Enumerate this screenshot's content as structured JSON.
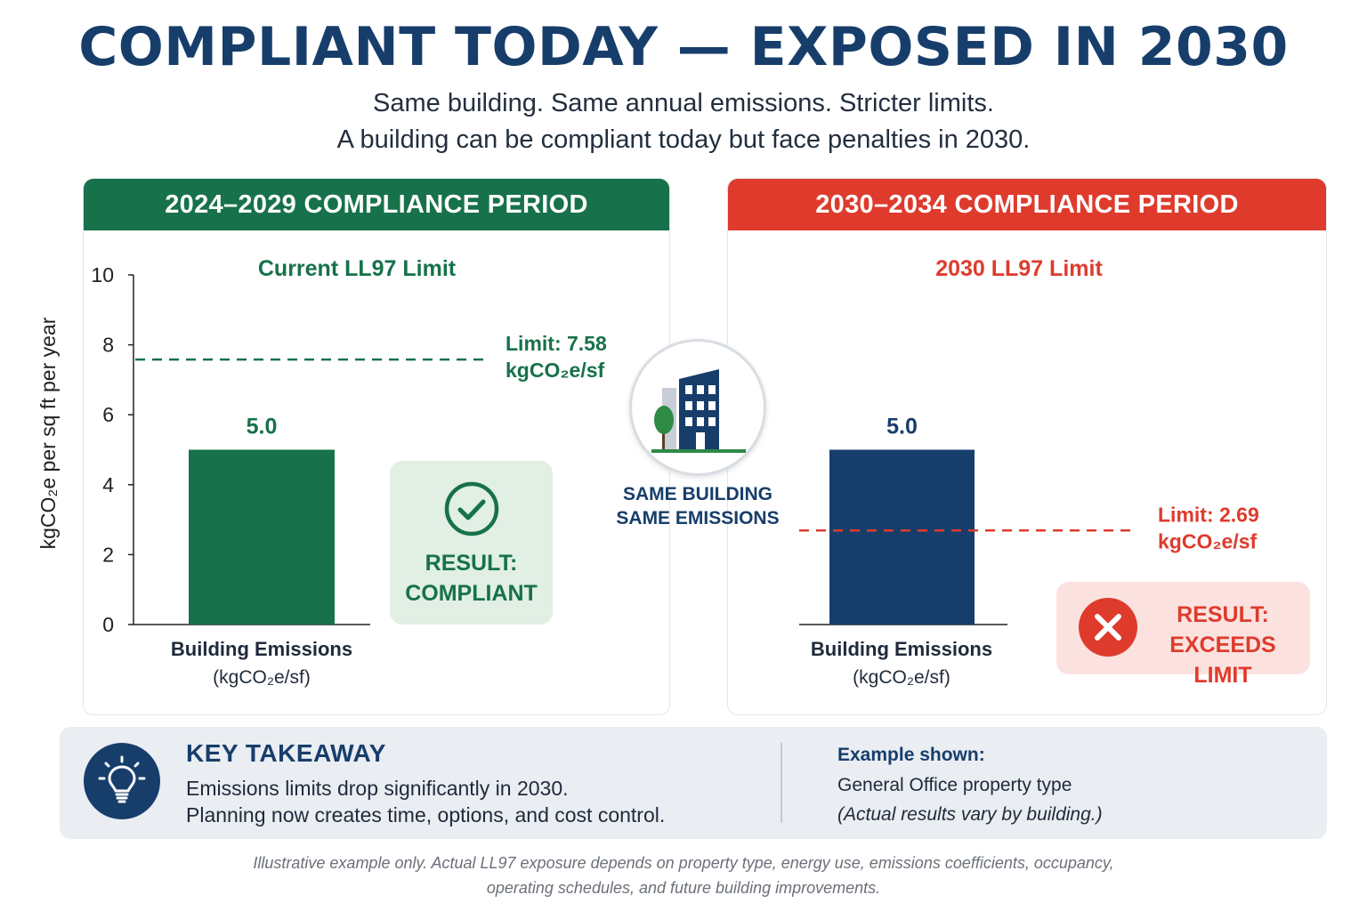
{
  "title": "COMPLIANT TODAY — EXPOSED IN 2030",
  "subtitle_line1": "Same building. Same annual emissions. Stricter limits.",
  "subtitle_line2": "A building can be compliant today but face penalties in 2030.",
  "colors": {
    "green": "#17714a",
    "red": "#de3b2d",
    "navy": "#173e6b",
    "bar_navy": "#173e6b"
  },
  "center": {
    "line1": "SAME BUILDING",
    "line2": "SAME EMISSIONS",
    "icon": "building-icon"
  },
  "results": {
    "left": {
      "line1": "RESULT:",
      "line2": "COMPLIANT",
      "icon": "check-circle-icon"
    },
    "right": {
      "line1": "RESULT:",
      "line2": "EXCEEDS LIMIT",
      "icon": "x-circle-icon"
    }
  },
  "takeaway": {
    "title": "KEY TAKEAWAY",
    "line1": "Emissions limits drop significantly in 2030.",
    "line2": "Planning now creates time, options, and cost control.",
    "icon": "lightbulb-icon",
    "example_title": "Example shown:",
    "example_line": "General Office property type",
    "example_note": "(Actual results vary by building.)"
  },
  "disclaimer_line1": "Illustrative example only. Actual LL97 exposure depends on property type, energy use, emissions coefficients, occupancy,",
  "disclaimer_line2": "operating schedules, and future building improvements.",
  "chart_data": [
    {
      "type": "bar",
      "panel_title": "2024–2029 COMPLIANCE PERIOD",
      "subtitle": "Current LL97 Limit",
      "ylabel": "kgCO₂e per sq ft per year",
      "yticks": [
        0,
        2,
        4,
        6,
        8,
        10
      ],
      "ylim": [
        0,
        10
      ],
      "categories": [
        "Building Emissions"
      ],
      "category_sub": "(kgCO₂e/sf)",
      "values": [
        5.0
      ],
      "value_labels": [
        "5.0"
      ],
      "bar_color": "#17714a",
      "limit": {
        "value": 7.58,
        "label_line1": "Limit: 7.58",
        "label_line2": "kgCO₂e/sf",
        "color": "#17714a"
      }
    },
    {
      "type": "bar",
      "panel_title": "2030–2034 COMPLIANCE PERIOD",
      "subtitle": "2030 LL97 Limit",
      "ylim": [
        0,
        10
      ],
      "categories": [
        "Building Emissions"
      ],
      "category_sub": "(kgCO₂e/sf)",
      "values": [
        5.0
      ],
      "value_labels": [
        "5.0"
      ],
      "bar_color": "#173e6b",
      "limit": {
        "value": 2.69,
        "label_line1": "Limit: 2.69",
        "label_line2": "kgCO₂e/sf",
        "color": "#de3b2d"
      }
    }
  ]
}
